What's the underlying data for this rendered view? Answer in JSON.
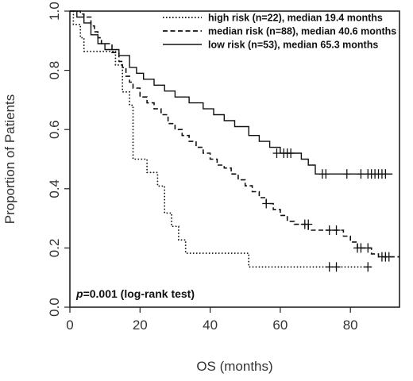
{
  "chart_data": {
    "type": "line",
    "subtype": "kaplan-meier step",
    "xlabel": "OS (months)",
    "ylabel": "Proportion of Patients",
    "xlim": [
      0,
      94
    ],
    "ylim": [
      0,
      1.0
    ],
    "xticks": [
      0,
      20,
      40,
      60,
      80
    ],
    "yticks": [
      0.0,
      0.2,
      0.4,
      0.6,
      0.8,
      1.0
    ],
    "yticklabels": [
      "0.0",
      "0.2",
      "0.4",
      "0.6",
      "0.8",
      "1.0"
    ],
    "grid": false,
    "legend_position": "top-right",
    "annotation": {
      "prefix": "p",
      "text": "=0.001 (log-rank test)"
    },
    "series": [
      {
        "name": "high risk (n=22), median 19.4 months",
        "style": "dotted",
        "steps": [
          [
            0,
            1.0
          ],
          [
            1,
            0.955
          ],
          [
            3,
            0.91
          ],
          [
            4,
            0.864
          ],
          [
            13,
            0.818
          ],
          [
            15,
            0.727
          ],
          [
            17,
            0.682
          ],
          [
            18,
            0.5
          ],
          [
            22,
            0.455
          ],
          [
            25,
            0.409
          ],
          [
            27,
            0.318
          ],
          [
            29,
            0.273
          ],
          [
            31,
            0.227
          ],
          [
            33,
            0.182
          ],
          [
            51,
            0.136
          ],
          [
            86,
            0.136
          ]
        ],
        "censored": [
          [
            74,
            0.136
          ],
          [
            76,
            0.136
          ],
          [
            85,
            0.136
          ]
        ]
      },
      {
        "name": "median risk (n=88), median 40.6 months",
        "style": "dashed",
        "steps": [
          [
            0,
            1.0
          ],
          [
            3,
            0.99
          ],
          [
            4,
            0.98
          ],
          [
            6,
            0.95
          ],
          [
            7,
            0.93
          ],
          [
            8,
            0.91
          ],
          [
            9,
            0.89
          ],
          [
            12,
            0.86
          ],
          [
            14,
            0.83
          ],
          [
            15,
            0.81
          ],
          [
            16,
            0.78
          ],
          [
            17,
            0.76
          ],
          [
            18,
            0.74
          ],
          [
            20,
            0.71
          ],
          [
            22,
            0.69
          ],
          [
            24,
            0.67
          ],
          [
            26,
            0.65
          ],
          [
            28,
            0.62
          ],
          [
            30,
            0.6
          ],
          [
            32,
            0.58
          ],
          [
            34,
            0.56
          ],
          [
            36,
            0.54
          ],
          [
            38,
            0.52
          ],
          [
            40,
            0.5
          ],
          [
            42,
            0.48
          ],
          [
            44,
            0.47
          ],
          [
            46,
            0.45
          ],
          [
            48,
            0.43
          ],
          [
            50,
            0.41
          ],
          [
            52,
            0.39
          ],
          [
            54,
            0.37
          ],
          [
            56,
            0.35
          ],
          [
            58,
            0.33
          ],
          [
            60,
            0.31
          ],
          [
            62,
            0.29
          ],
          [
            64,
            0.28
          ],
          [
            68,
            0.26
          ],
          [
            72,
            0.26
          ],
          [
            78,
            0.24
          ],
          [
            80,
            0.22
          ],
          [
            82,
            0.2
          ],
          [
            86,
            0.18
          ],
          [
            88,
            0.17
          ],
          [
            94,
            0.17
          ]
        ],
        "censored": [
          [
            56,
            0.35
          ],
          [
            67,
            0.28
          ],
          [
            68,
            0.28
          ],
          [
            74,
            0.26
          ],
          [
            76,
            0.26
          ],
          [
            82,
            0.2
          ],
          [
            83,
            0.2
          ],
          [
            85,
            0.2
          ],
          [
            89,
            0.17
          ],
          [
            90,
            0.17
          ],
          [
            91,
            0.17
          ]
        ]
      },
      {
        "name": "low risk (n=53), median 65.3 months",
        "style": "solid",
        "steps": [
          [
            0,
            1.0
          ],
          [
            2,
            0.98
          ],
          [
            4,
            0.96
          ],
          [
            6,
            0.92
          ],
          [
            8,
            0.89
          ],
          [
            10,
            0.87
          ],
          [
            14,
            0.85
          ],
          [
            17,
            0.81
          ],
          [
            19,
            0.79
          ],
          [
            21,
            0.77
          ],
          [
            24,
            0.75
          ],
          [
            27,
            0.73
          ],
          [
            30,
            0.71
          ],
          [
            34,
            0.69
          ],
          [
            38,
            0.67
          ],
          [
            41,
            0.65
          ],
          [
            44,
            0.63
          ],
          [
            47,
            0.61
          ],
          [
            51,
            0.58
          ],
          [
            54,
            0.56
          ],
          [
            57,
            0.54
          ],
          [
            60,
            0.52
          ],
          [
            66,
            0.5
          ],
          [
            68,
            0.48
          ],
          [
            70,
            0.45
          ],
          [
            92,
            0.45
          ]
        ],
        "censored": [
          [
            59,
            0.52
          ],
          [
            61,
            0.52
          ],
          [
            62,
            0.52
          ],
          [
            63,
            0.52
          ],
          [
            72,
            0.45
          ],
          [
            73,
            0.45
          ],
          [
            79,
            0.45
          ],
          [
            83,
            0.45
          ],
          [
            85,
            0.45
          ],
          [
            86,
            0.45
          ],
          [
            87,
            0.45
          ],
          [
            88,
            0.45
          ],
          [
            89,
            0.45
          ],
          [
            90,
            0.45
          ]
        ]
      }
    ]
  }
}
